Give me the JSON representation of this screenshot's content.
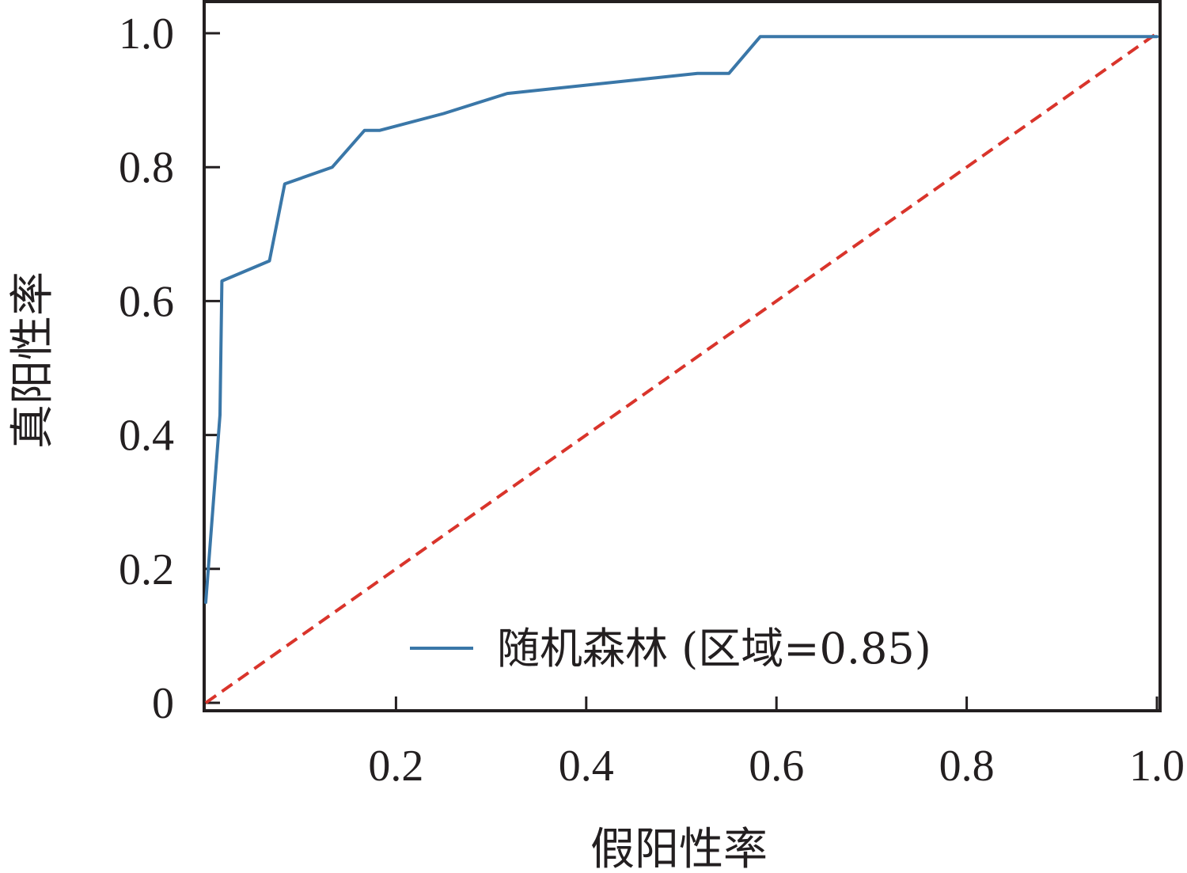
{
  "chart_data": {
    "type": "line",
    "title": "",
    "xlabel": "假阳性率",
    "ylabel": "真阳性率",
    "xlim": [
      0,
      1.0
    ],
    "ylim": [
      0,
      1.0
    ],
    "x_ticks": [
      {
        "value": 0.2,
        "label": "0.2"
      },
      {
        "value": 0.4,
        "label": "0.4"
      },
      {
        "value": 0.6,
        "label": "0.6"
      },
      {
        "value": 0.8,
        "label": "0.8"
      },
      {
        "value": 1.0,
        "label": "1.0"
      }
    ],
    "y_ticks": [
      {
        "value": 0,
        "label": "0"
      },
      {
        "value": 0.2,
        "label": "0.2"
      },
      {
        "value": 0.4,
        "label": "0.4"
      },
      {
        "value": 0.6,
        "label": "0.6"
      },
      {
        "value": 0.8,
        "label": "0.8"
      },
      {
        "value": 1.0,
        "label": "1.0"
      }
    ],
    "grid": false,
    "legend_position": "bottom-right",
    "series": [
      {
        "name": "随机森林 (区域=0.85)",
        "color": "#3a77a8",
        "style": "solid",
        "x": [
          0,
          0.015,
          0.017,
          0.067,
          0.083,
          0.133,
          0.167,
          0.183,
          0.25,
          0.317,
          0.517,
          0.55,
          0.583,
          1.0
        ],
        "y": [
          0.15,
          0.43,
          0.63,
          0.66,
          0.775,
          0.8,
          0.855,
          0.855,
          0.88,
          0.91,
          0.94,
          0.94,
          0.995,
          0.995
        ]
      },
      {
        "color": "#d9342b",
        "style": "dashed",
        "x": [
          0,
          1.0
        ],
        "y": [
          0,
          1.0
        ]
      }
    ]
  }
}
